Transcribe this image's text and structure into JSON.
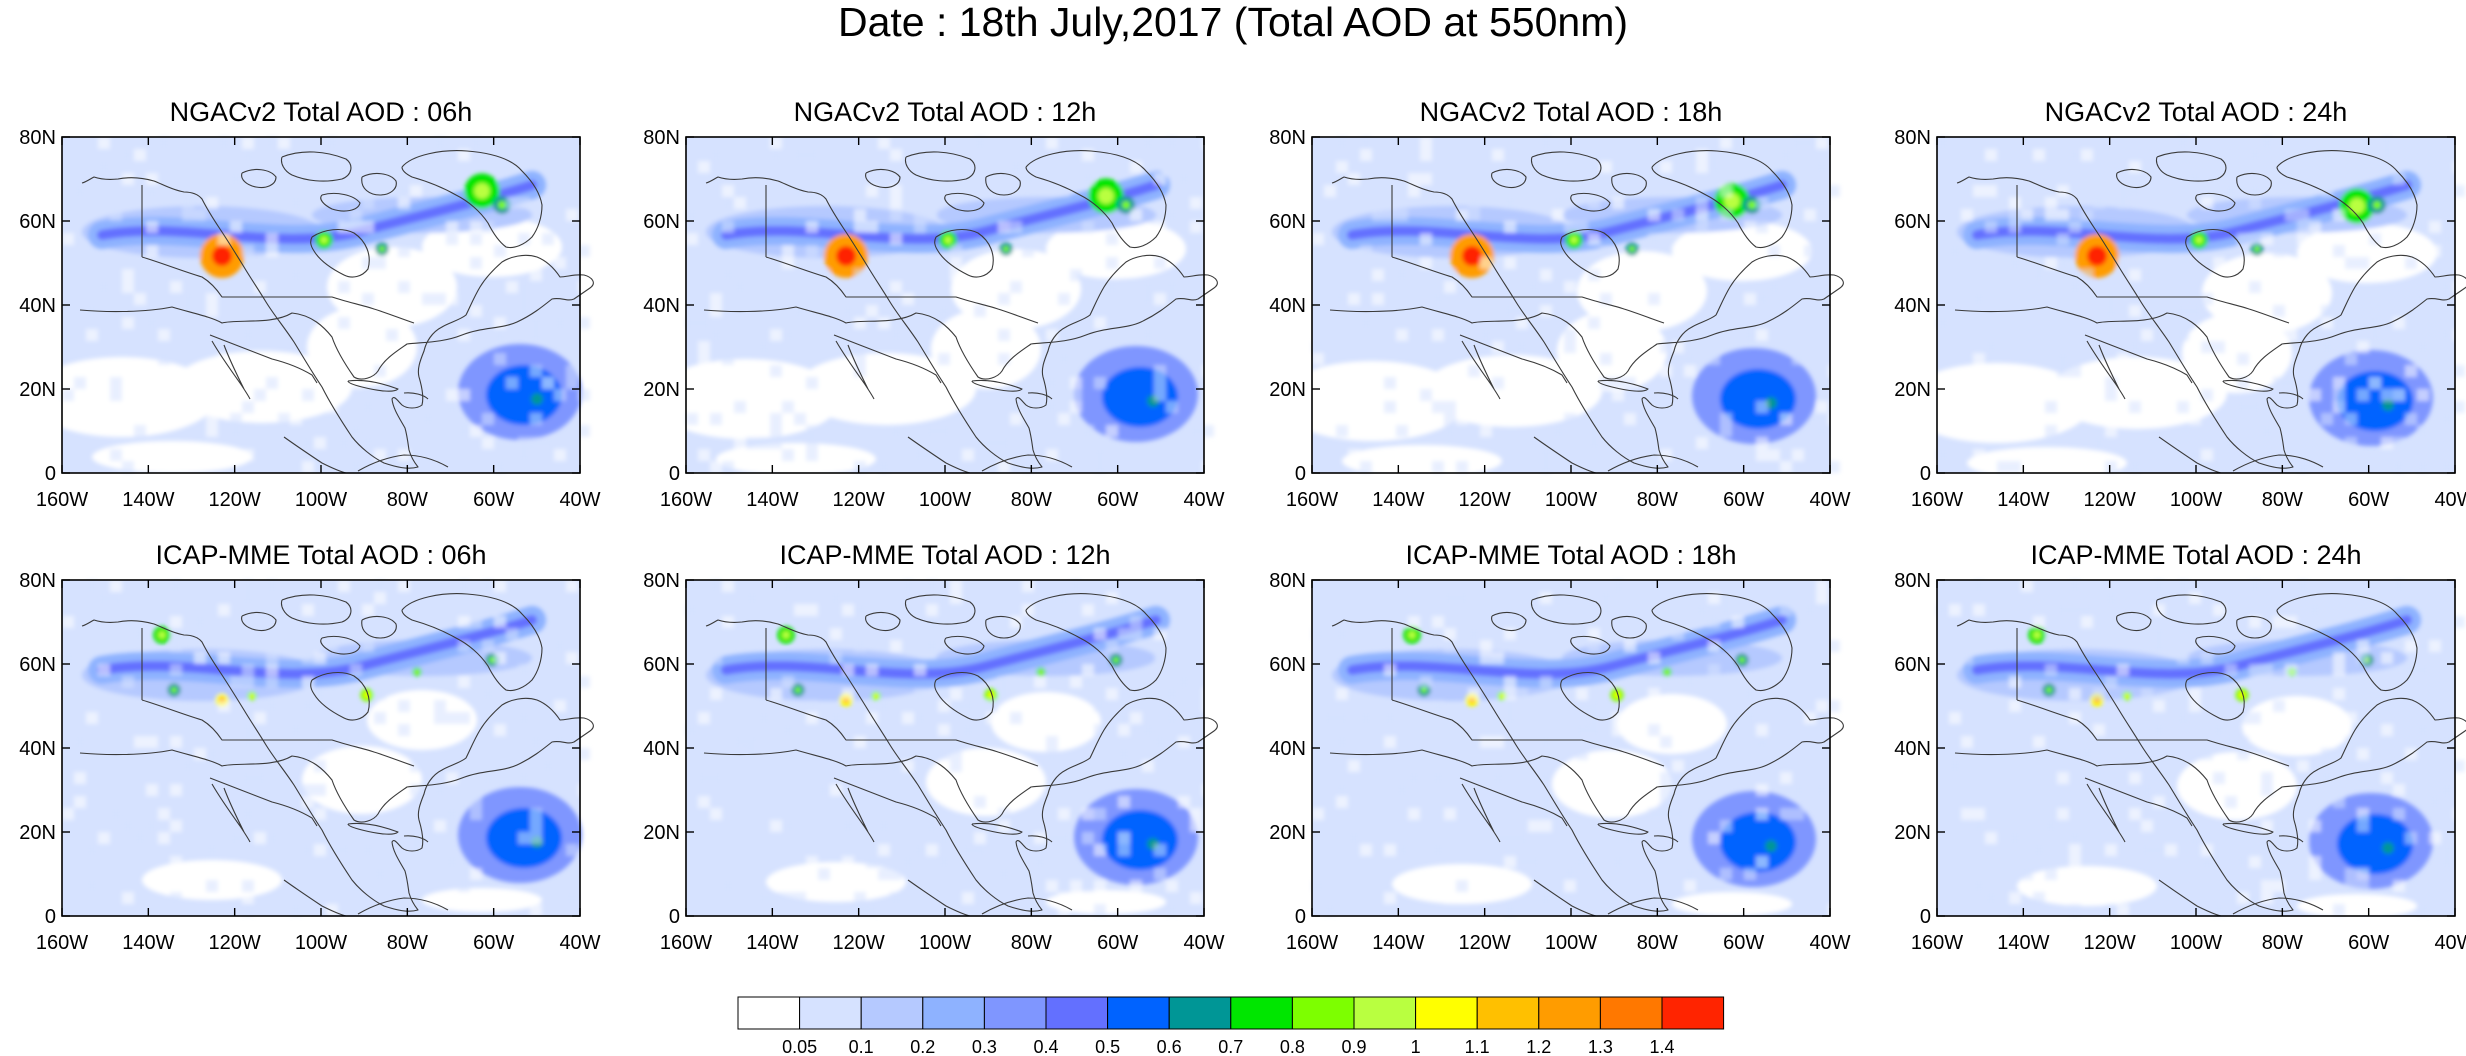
{
  "title": "Date : 18th July,2017 (Total AOD at 550nm)",
  "panels": [
    {
      "title": "NGACv2 Total AOD : 06h",
      "model": "ngac",
      "hour": 6
    },
    {
      "title": "NGACv2 Total AOD : 12h",
      "model": "ngac",
      "hour": 12
    },
    {
      "title": "NGACv2 Total AOD : 18h",
      "model": "ngac",
      "hour": 18
    },
    {
      "title": "NGACv2 Total AOD : 24h",
      "model": "ngac",
      "hour": 24
    },
    {
      "title": "ICAP-MME Total AOD : 06h",
      "model": "icap",
      "hour": 6
    },
    {
      "title": "ICAP-MME Total AOD : 12h",
      "model": "icap",
      "hour": 12
    },
    {
      "title": "ICAP-MME Total AOD : 18h",
      "model": "icap",
      "hour": 18
    },
    {
      "title": "ICAP-MME Total AOD : 24h",
      "model": "icap",
      "hour": 24
    }
  ],
  "map": {
    "lon_range": [
      -160,
      -40
    ],
    "lat_range": [
      0,
      80
    ],
    "lon_ticks": [
      {
        "value": -160,
        "label": "160W"
      },
      {
        "value": -140,
        "label": "140W"
      },
      {
        "value": -120,
        "label": "120W"
      },
      {
        "value": -100,
        "label": "100W"
      },
      {
        "value": -80,
        "label": "80W"
      },
      {
        "value": -60,
        "label": "60W"
      },
      {
        "value": -40,
        "label": "40W"
      }
    ],
    "lat_ticks": [
      {
        "value": 0,
        "label": "0"
      },
      {
        "value": 20,
        "label": "20N"
      },
      {
        "value": 40,
        "label": "40N"
      },
      {
        "value": 60,
        "label": "60N"
      },
      {
        "value": 80,
        "label": "80N"
      }
    ]
  },
  "colorbar": {
    "labels": [
      "0.05",
      "0.1",
      "0.2",
      "0.3",
      "0.4",
      "0.5",
      "0.6",
      "0.7",
      "0.8",
      "0.9",
      "1",
      "1.1",
      "1.2",
      "1.3",
      "1.4"
    ],
    "colors": [
      "#ffffff",
      "#d6e2ff",
      "#b5c9ff",
      "#8eb2ff",
      "#7f96ff",
      "#6370ff",
      "#0063ff",
      "#009696",
      "#00e600",
      "#7dff00",
      "#b9ff40",
      "#ffff00",
      "#ffc000",
      "#ff9c00",
      "#ff7800",
      "#ff2400"
    ]
  }
}
